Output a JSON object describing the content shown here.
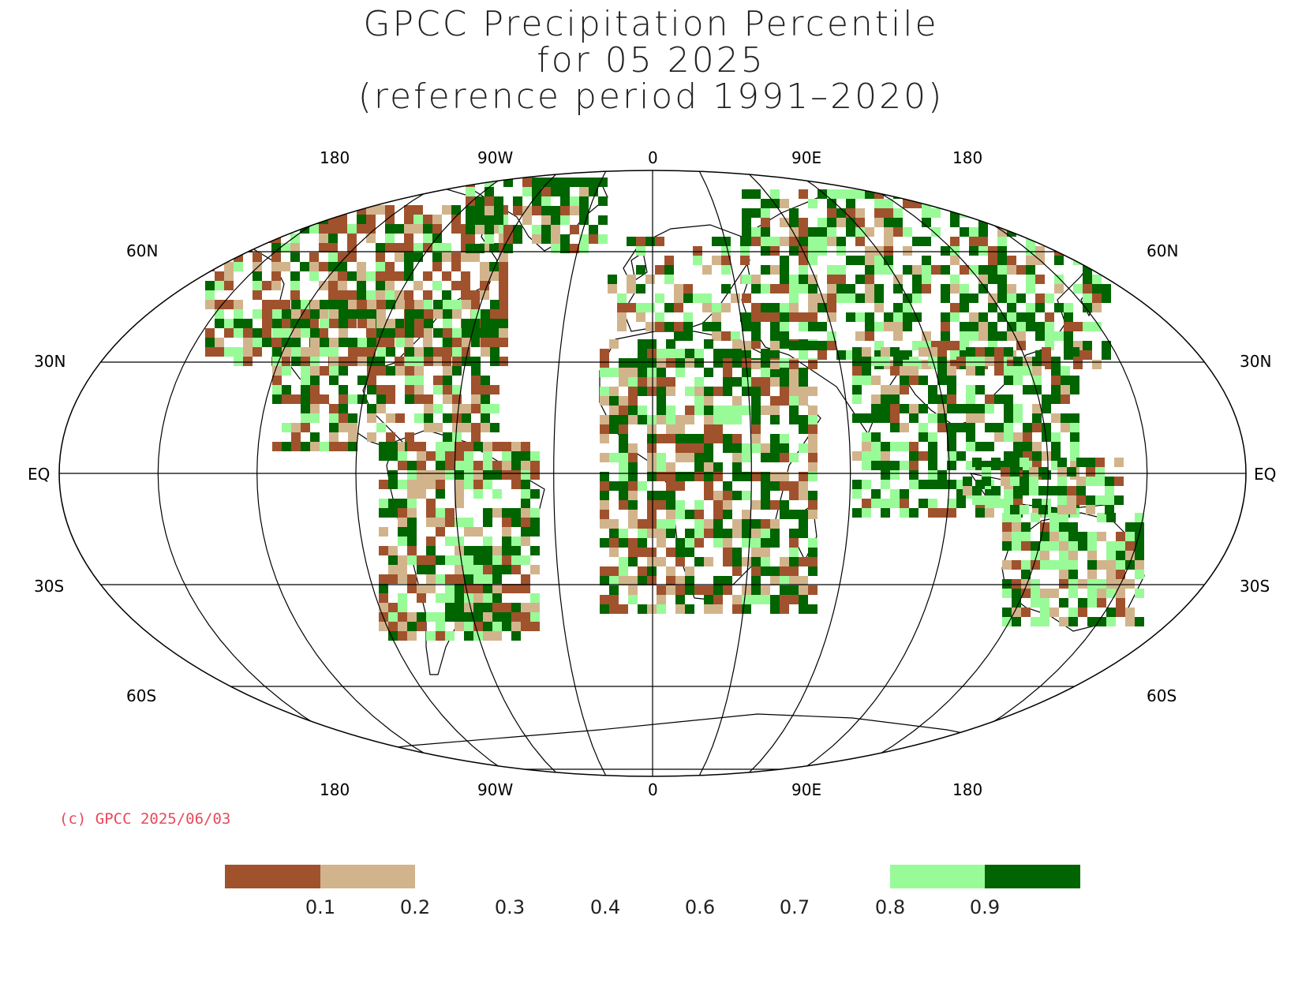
{
  "title": {
    "line1": "GPCC Precipitation Percentile",
    "line2": "for 05 2025",
    "line3": "(reference period 1991–2020)"
  },
  "longitude_labels_top": [
    "180",
    "90W",
    "0",
    "90E",
    "180"
  ],
  "longitude_labels_bottom": [
    "180",
    "90W",
    "0",
    "90E",
    "180"
  ],
  "latitude_labels_left": [
    "60N",
    "30N",
    "EQ",
    "30S",
    "60S"
  ],
  "latitude_labels_right": [
    "60N",
    "30N",
    "EQ",
    "30S",
    "60S"
  ],
  "copyright": "(c) GPCC 2025/06/03",
  "colorbar": {
    "labels": [
      "0.1",
      "0.2",
      "0.3",
      "0.4",
      "0.6",
      "0.7",
      "0.8",
      "0.9"
    ],
    "bins": [
      {
        "range": "< 0.1",
        "color": "#a0522d"
      },
      {
        "range": "0.1 – 0.2",
        "color": "#d2b48c"
      },
      {
        "range": "0.2 – 0.8",
        "color": "#ffffff"
      },
      {
        "range": "0.8 – 0.9",
        "color": "#98fb98"
      },
      {
        "range": "> 0.9",
        "color": "#006400"
      }
    ]
  },
  "colors": {
    "very_dry": "#a0522d",
    "dry": "#d2b48c",
    "wet": "#98fb98",
    "very_wet": "#006400",
    "copyright": "#e8495b"
  }
}
